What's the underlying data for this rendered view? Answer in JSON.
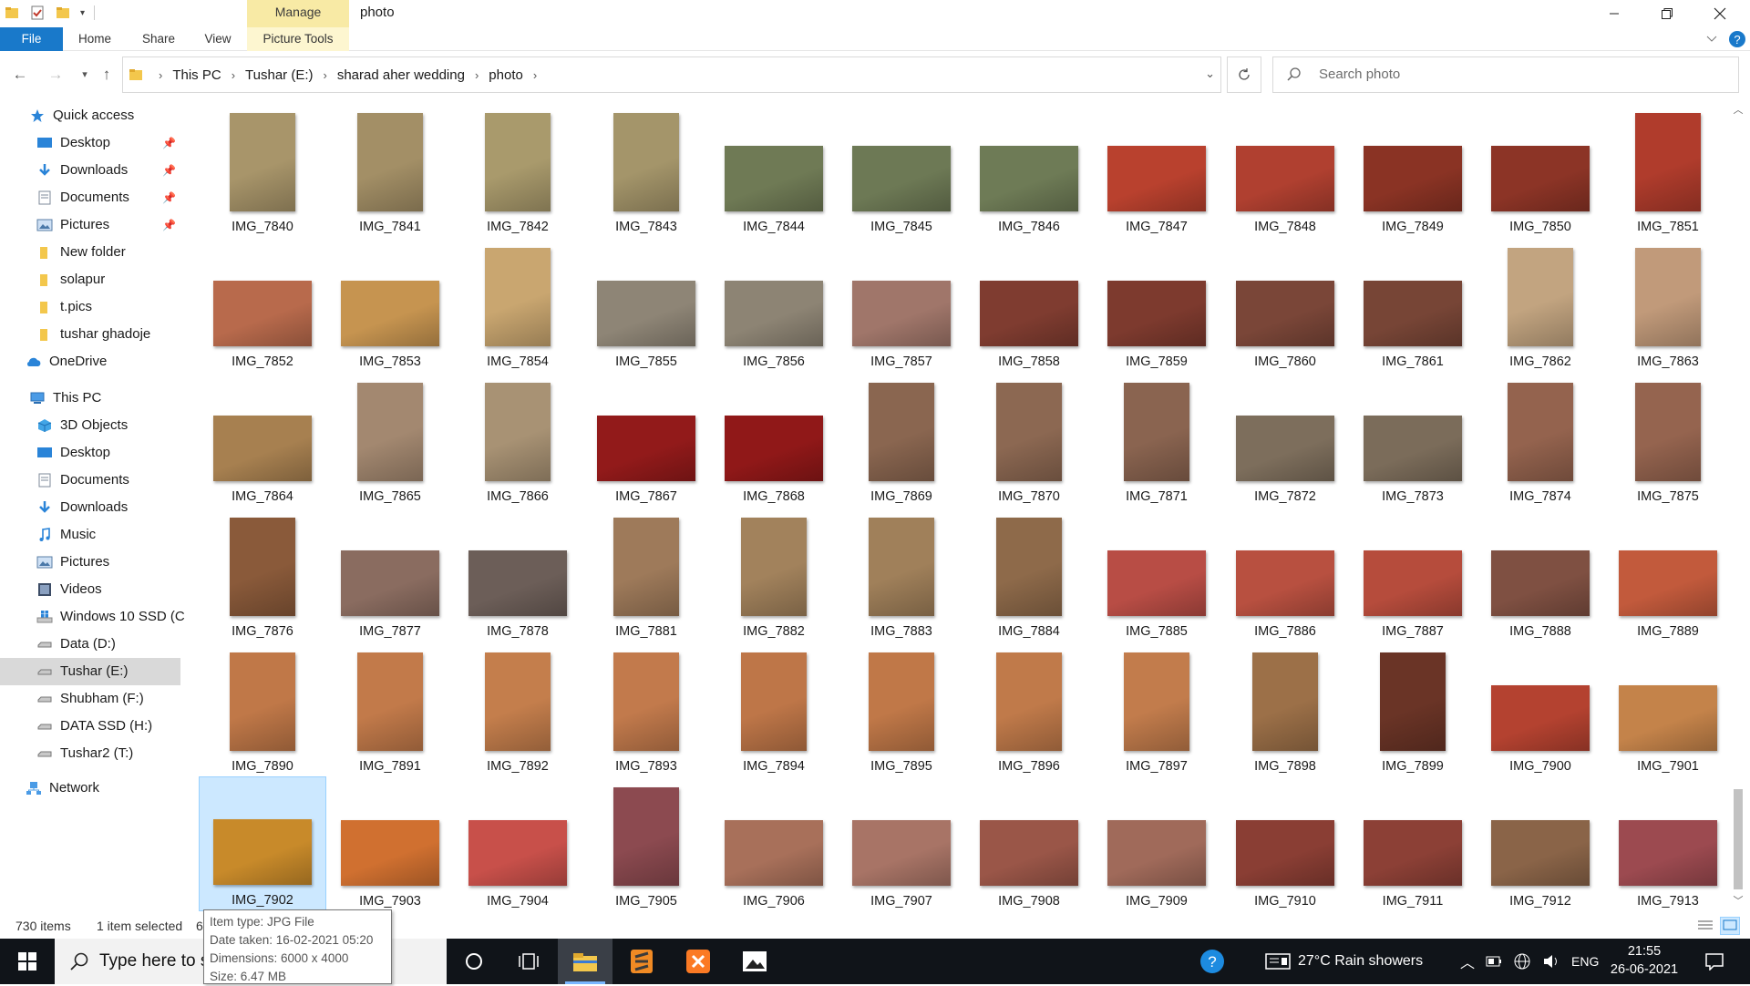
{
  "window": {
    "title": "photo",
    "context_tab": "Manage",
    "controls": [
      "minimize",
      "maximize",
      "close"
    ]
  },
  "ribbon": {
    "tabs": [
      {
        "label": "File",
        "active": true
      },
      {
        "label": "Home"
      },
      {
        "label": "Share"
      },
      {
        "label": "View"
      },
      {
        "label": "Picture Tools"
      }
    ]
  },
  "address": {
    "crumbs": [
      "This PC",
      "Tushar (E:)",
      "sharad aher wedding",
      "photo"
    ]
  },
  "search": {
    "placeholder": "Search photo"
  },
  "nav": {
    "quick_access": {
      "label": "Quick access"
    },
    "quick_items": [
      {
        "label": "Desktop",
        "icon": "desktop-icon",
        "pinned": true
      },
      {
        "label": "Downloads",
        "icon": "downloads-icon",
        "pinned": true
      },
      {
        "label": "Documents",
        "icon": "documents-icon",
        "pinned": true
      },
      {
        "label": "Pictures",
        "icon": "pictures-icon",
        "pinned": true
      },
      {
        "label": "New folder",
        "icon": "folder-icon",
        "pinned": false
      },
      {
        "label": "solapur",
        "icon": "folder-icon",
        "pinned": false
      },
      {
        "label": "t.pics",
        "icon": "folder-icon",
        "pinned": false
      },
      {
        "label": "tushar ghadoje",
        "icon": "folder-icon",
        "pinned": false
      }
    ],
    "onedrive": {
      "label": "OneDrive"
    },
    "this_pc": {
      "label": "This PC"
    },
    "pc_items": [
      {
        "label": "3D Objects",
        "icon": "3d-objects-icon"
      },
      {
        "label": "Desktop",
        "icon": "desktop-icon"
      },
      {
        "label": "Documents",
        "icon": "documents-icon"
      },
      {
        "label": "Downloads",
        "icon": "downloads-icon"
      },
      {
        "label": "Music",
        "icon": "music-icon"
      },
      {
        "label": "Pictures",
        "icon": "pictures-icon"
      },
      {
        "label": "Videos",
        "icon": "videos-icon"
      },
      {
        "label": "Windows 10 SSD (C",
        "icon": "windows-drive-icon"
      },
      {
        "label": "Data (D:)",
        "icon": "drive-icon"
      },
      {
        "label": "Tushar (E:)",
        "icon": "drive-icon",
        "selected": true
      },
      {
        "label": "Shubham (F:)",
        "icon": "drive-icon"
      },
      {
        "label": "DATA SSD (H:)",
        "icon": "drive-icon"
      },
      {
        "label": "Tushar2 (T:)",
        "icon": "drive-icon"
      }
    ],
    "network": {
      "label": "Network"
    }
  },
  "files": [
    [
      "IMG_7840",
      "IMG_7841",
      "IMG_7842",
      "IMG_7843",
      "IMG_7844",
      "IMG_7845",
      "IMG_7846",
      "IMG_7847",
      "IMG_7848",
      "IMG_7849",
      "IMG_7850",
      "IMG_7851"
    ],
    [
      "IMG_7852",
      "IMG_7853",
      "IMG_7854",
      "IMG_7855",
      "IMG_7856",
      "IMG_7857",
      "IMG_7858",
      "IMG_7859",
      "IMG_7860",
      "IMG_7861",
      "IMG_7862",
      "IMG_7863"
    ],
    [
      "IMG_7864",
      "IMG_7865",
      "IMG_7866",
      "IMG_7867",
      "IMG_7868",
      "IMG_7869",
      "IMG_7870",
      "IMG_7871",
      "IMG_7872",
      "IMG_7873",
      "IMG_7874",
      "IMG_7875"
    ],
    [
      "IMG_7876",
      "IMG_7877",
      "IMG_7878",
      "IMG_7881",
      "IMG_7882",
      "IMG_7883",
      "IMG_7884",
      "IMG_7885",
      "IMG_7886",
      "IMG_7887",
      "IMG_7888",
      "IMG_7889"
    ],
    [
      "IMG_7890",
      "IMG_7891",
      "IMG_7892",
      "IMG_7893",
      "IMG_7894",
      "IMG_7895",
      "IMG_7896",
      "IMG_7897",
      "IMG_7898",
      "IMG_7899",
      "IMG_7900",
      "IMG_7901"
    ],
    [
      "IMG_7902",
      "IMG_7903",
      "IMG_7904",
      "IMG_7905",
      "IMG_7906",
      "IMG_7907",
      "IMG_7908",
      "IMG_7909",
      "IMG_7910",
      "IMG_7911",
      "IMG_7912",
      "IMG_7913"
    ]
  ],
  "thumb_orientation": [
    [
      "p",
      "p",
      "p",
      "p",
      "l",
      "l",
      "l",
      "l",
      "l",
      "l",
      "l",
      "p"
    ],
    [
      "l",
      "l",
      "p",
      "l",
      "l",
      "l",
      "l",
      "l",
      "l",
      "l",
      "p",
      "p"
    ],
    [
      "l",
      "p",
      "p",
      "l",
      "l",
      "p",
      "p",
      "p",
      "l",
      "l",
      "p",
      "p"
    ],
    [
      "p",
      "l",
      "l",
      "p",
      "p",
      "p",
      "p",
      "l",
      "l",
      "l",
      "l",
      "l"
    ],
    [
      "p",
      "p",
      "p",
      "p",
      "p",
      "p",
      "p",
      "p",
      "p",
      "p",
      "l",
      "l"
    ],
    [
      "l",
      "l",
      "l",
      "p",
      "l",
      "l",
      "l",
      "l",
      "l",
      "l",
      "l",
      "l"
    ]
  ],
  "thumb_colors": [
    [
      "#a8956a",
      "#a38f66",
      "#a99a6c",
      "#a4956a",
      "#6f7a55",
      "#6d7955",
      "#6e7b56",
      "#b9412e",
      "#b04030",
      "#8a3324",
      "#8c3426",
      "#b03c2c"
    ],
    [
      "#b86a4c",
      "#c69450",
      "#c9a670",
      "#8e8576",
      "#8d8474",
      "#a0766a",
      "#7f3c30",
      "#7d3a2e",
      "#7a4638",
      "#774536",
      "#c2a480",
      "#c19a7a"
    ],
    [
      "#a78050",
      "#a38870",
      "#a89274",
      "#921a1a",
      "#901818",
      "#8a6650",
      "#8c6852",
      "#8a6450",
      "#7d6e5c",
      "#7b6c5a",
      "#94634e",
      "#95644f"
    ],
    [
      "#8a5a3a",
      "#8a6c60",
      "#6c5e58",
      "#9e7a5a",
      "#a2825c",
      "#a0805a",
      "#8e6a4a",
      "#b84d45",
      "#b85040",
      "#b64c3c",
      "#7f5042",
      "#c25a3c"
    ],
    [
      "#c07848",
      "#c27a4a",
      "#c47e4c",
      "#c27a4c",
      "#be7648",
      "#c07848",
      "#c07a4a",
      "#c27c4c",
      "#9c7048",
      "#6a3426",
      "#b44230",
      "#c4834a"
    ],
    [
      "#c88a2a",
      "#d07030",
      "#c8504a",
      "#8c4a50",
      "#a8705a",
      "#a87466",
      "#9a5648",
      "#a06a5a",
      "#8a3e34",
      "#8c4036",
      "#8a6448",
      "#9c4a50"
    ]
  ],
  "selected_file": "IMG_7902",
  "tooltip": {
    "line1": "Item type: JPG File",
    "line2": "Date taken: 16-02-2021 05:20",
    "line3": "Dimensions: 6000 x 4000",
    "line4": "Size: 6.47 MB"
  },
  "status": {
    "count": "730 items",
    "selection": "1 item selected",
    "size_clipped": "6"
  },
  "taskbar": {
    "search_placeholder": "Type here to s",
    "weather": "27°C  Rain showers",
    "language": "ENG",
    "time": "21:55",
    "date": "26-06-2021"
  },
  "colors": {
    "accent": "#1979ca",
    "context_tab": "#f8eaa5",
    "selection": "#cce8ff",
    "taskbar": "#101419"
  }
}
